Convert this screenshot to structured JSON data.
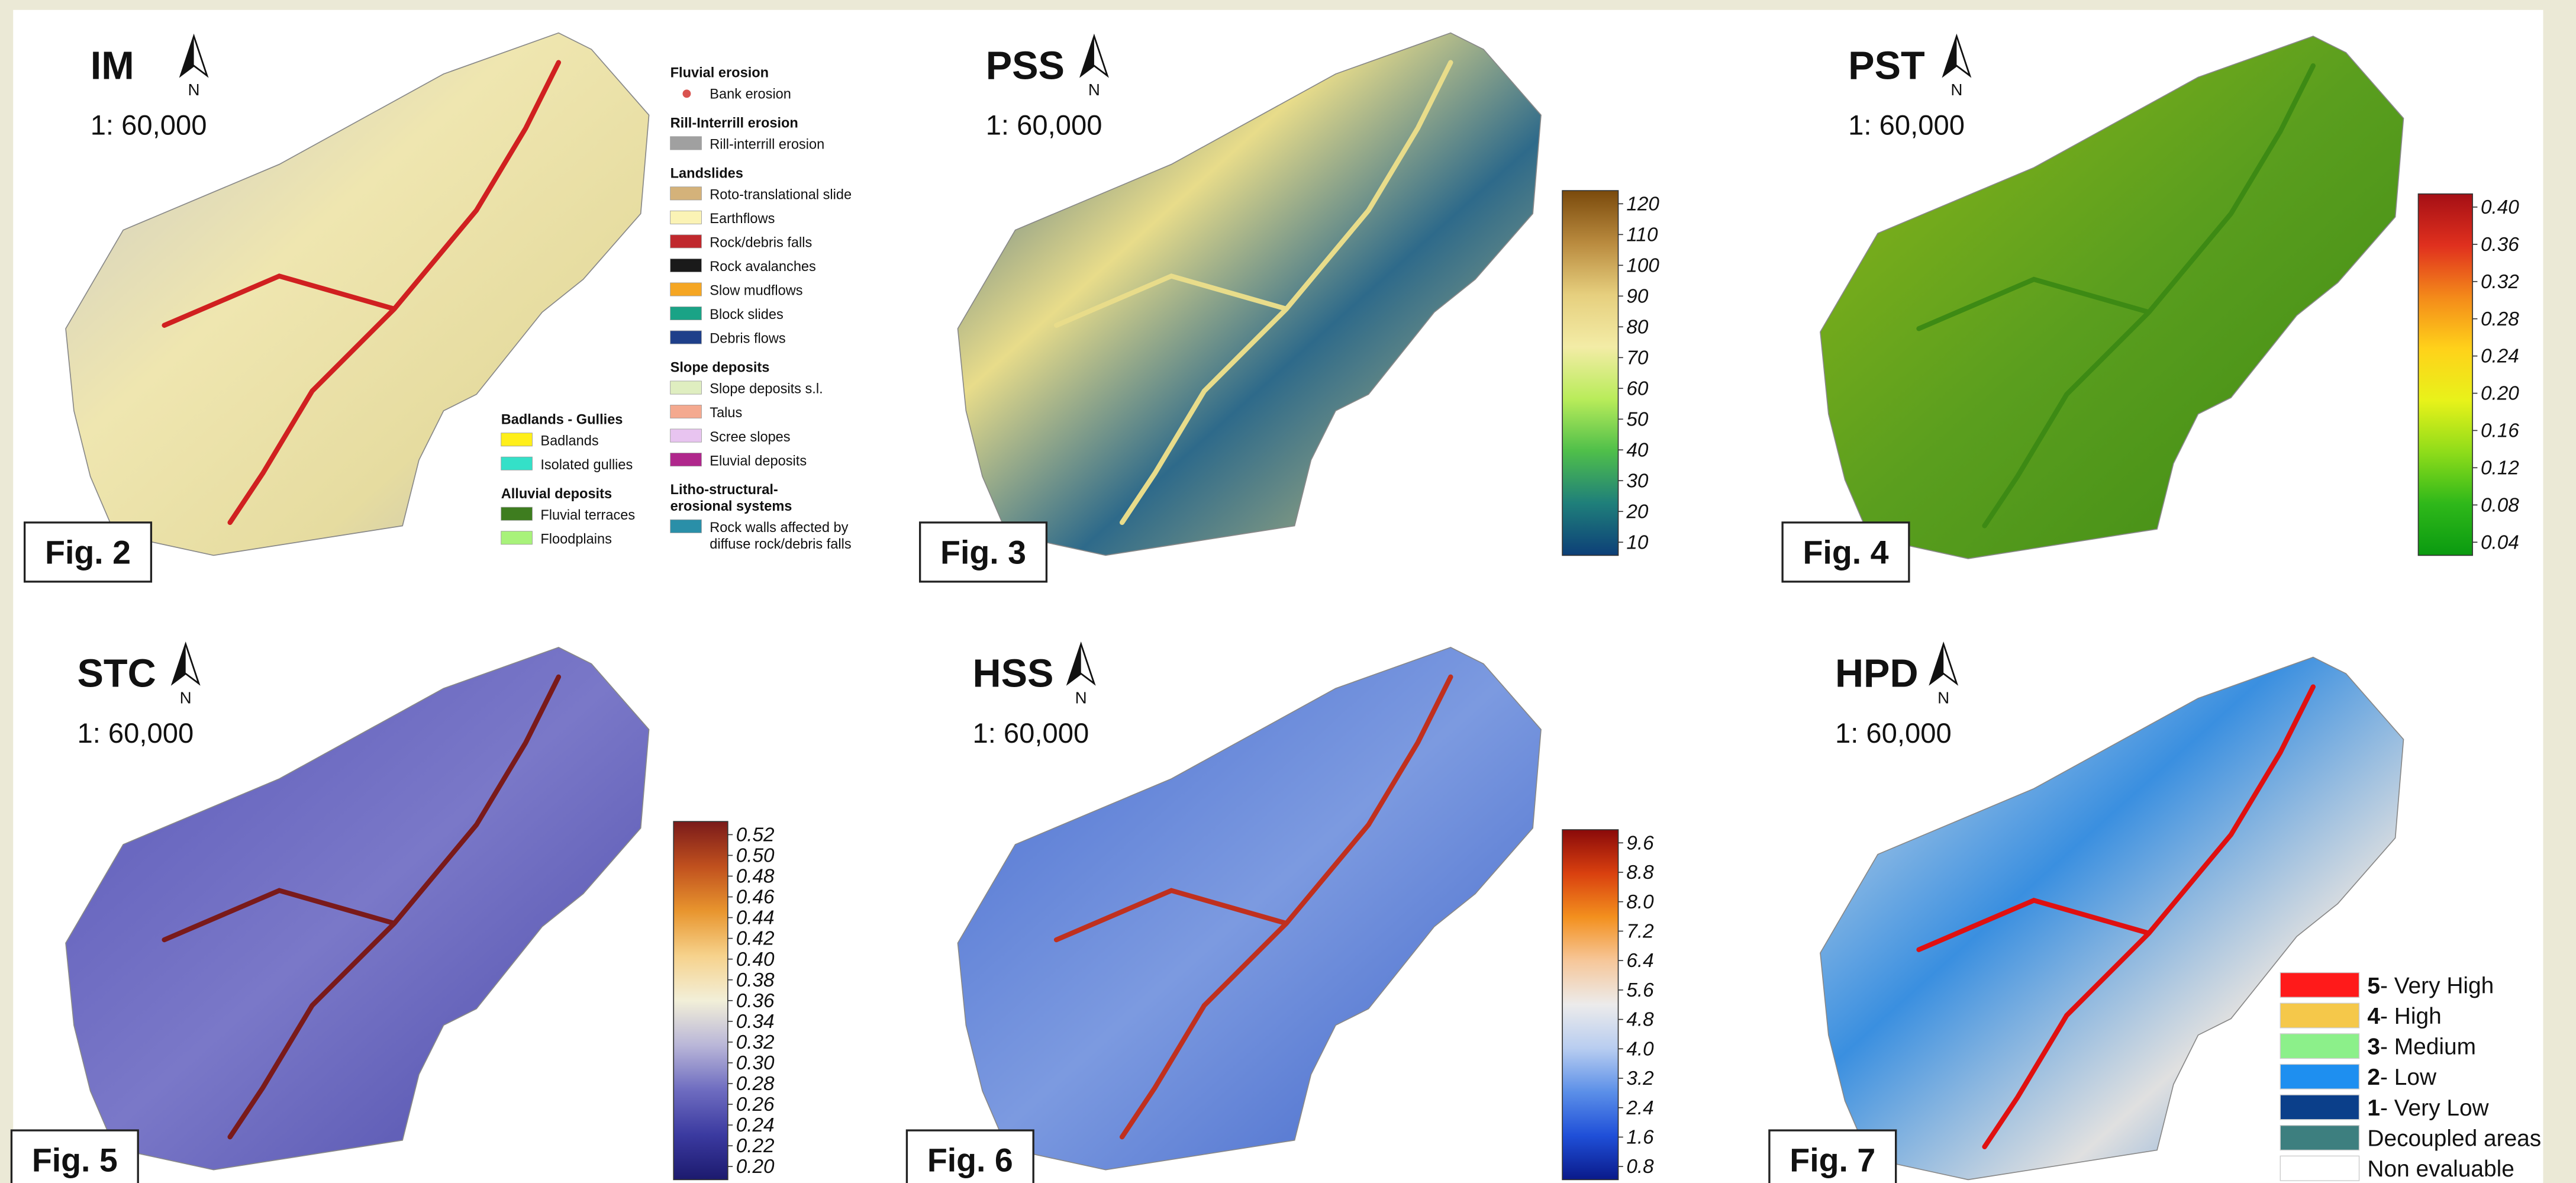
{
  "panels": [
    {
      "title": "IM",
      "north": "N",
      "scale": "1: 60,000",
      "figure": "Fig. 2",
      "legend": [
        {
          "heading": [
            "Fluvial erosion"
          ],
          "items": [
            {
              "label": [
                "Bank erosion"
              ],
              "color": "#d9534f"
            }
          ]
        },
        {
          "heading": [
            "Rill-Interrill erosion"
          ],
          "items": [
            {
              "label": [
                "Rill-interrill erosion"
              ],
              "color": "#a0a0a0"
            }
          ]
        },
        {
          "heading": [
            "Landslides"
          ],
          "items": [
            {
              "label": [
                "Roto-translational slide"
              ],
              "color": "#d4b27a"
            },
            {
              "label": [
                "Earthflows"
              ],
              "color": "#fbf3b5"
            },
            {
              "label": [
                "Rock/debris falls"
              ],
              "color": "#c0282d"
            },
            {
              "label": [
                "Rock avalanches"
              ],
              "color": "#1a1a1a"
            },
            {
              "label": [
                "Slow mudflows"
              ],
              "color": "#f5a623"
            },
            {
              "label": [
                "Block slides"
              ],
              "color": "#1aa386"
            },
            {
              "label": [
                "Debris flows"
              ],
              "color": "#1e3f8a"
            }
          ]
        },
        {
          "heading": [
            "Slope deposits"
          ],
          "items": [
            {
              "label": [
                "Slope deposits s.l."
              ],
              "color": "#dfeec0"
            },
            {
              "label": [
                "Talus"
              ],
              "color": "#f4a98f"
            },
            {
              "label": [
                "Scree slopes"
              ],
              "color": "#e8c4f0"
            },
            {
              "label": [
                "Eluvial deposits"
              ],
              "color": "#b0278c"
            }
          ]
        },
        {
          "heading": [
            "Litho-structural-",
            "erosional systems"
          ],
          "items": [
            {
              "label": [
                "Rock walls affected by",
                "diffuse rock/debris falls"
              ],
              "color": "#2a8fa8"
            }
          ]
        },
        {
          "heading": [
            "Badlands - Gullies"
          ],
          "items": [
            {
              "label": [
                "Badlands"
              ],
              "color": "#ffef1a"
            },
            {
              "label": [
                "Isolated gullies"
              ],
              "color": "#34e0c8"
            }
          ]
        },
        {
          "heading": [
            "Alluvial deposits"
          ],
          "items": [
            {
              "label": [
                "Fluvial terraces"
              ],
              "color": "#3e7d1f"
            },
            {
              "label": [
                "Floodplains"
              ],
              "color": "#a8f27a"
            }
          ]
        }
      ]
    },
    {
      "title": "PSS",
      "north": "N",
      "scale": "1: 60,000",
      "figure": "Fig. 3",
      "colorbar": {
        "ticks": [
          "120",
          "110",
          "100",
          "90",
          "80",
          "70",
          "60",
          "50",
          "40",
          "30",
          "20",
          "10"
        ],
        "colors": [
          "#7a4a0c",
          "#b98a3e",
          "#e6cf7e",
          "#f3eca6",
          "#b9ec5a",
          "#4fbf4a",
          "#1f7f7a",
          "#0d3f78"
        ]
      }
    },
    {
      "title": "PST",
      "north": "N",
      "scale": "1: 60,000",
      "figure": "Fig. 4",
      "colorbar": {
        "ticks": [
          "0.40",
          "0.36",
          "0.32",
          "0.28",
          "0.24",
          "0.20",
          "0.16",
          "0.12",
          "0.08",
          "0.04"
        ],
        "colors": [
          "#a50f15",
          "#e0301e",
          "#f48a1a",
          "#ffd21a",
          "#e8f21a",
          "#8fdc1a",
          "#2fb81a",
          "#0a9a10"
        ]
      }
    },
    {
      "title": "STC",
      "north": "N",
      "scale": "1: 60,000",
      "figure": "Fig. 5",
      "colorbar": {
        "ticks": [
          "0.52",
          "0.50",
          "0.48",
          "0.46",
          "0.44",
          "0.42",
          "0.40",
          "0.38",
          "0.36",
          "0.34",
          "0.32",
          "0.30",
          "0.28",
          "0.26",
          "0.24",
          "0.22",
          "0.20"
        ],
        "colors": [
          "#7a1a1a",
          "#c0501e",
          "#e8952e",
          "#f6d28c",
          "#f2efd8",
          "#b9b6d8",
          "#6e6cc0",
          "#3b3aa0",
          "#1c1a6e"
        ]
      }
    },
    {
      "title": "HSS",
      "north": "N",
      "scale": "1: 60,000",
      "figure": "Fig. 6",
      "colorbar": {
        "ticks": [
          "9.6",
          "8.8",
          "8.0",
          "7.2",
          "6.4",
          "5.6",
          "4.8",
          "4.0",
          "3.2",
          "2.4",
          "1.6",
          "0.8"
        ],
        "colors": [
          "#8a0a0a",
          "#d9400f",
          "#f3901e",
          "#f6c79a",
          "#ecebeb",
          "#b8cdf0",
          "#5b8fe8",
          "#1f4fd8",
          "#0a1a8a"
        ]
      }
    },
    {
      "title": "HPD",
      "north": "N",
      "scale": "1: 60,000",
      "figure": "Fig. 7",
      "classes": [
        {
          "class": "5",
          "label": "- Very High",
          "color": "#ff1a1a"
        },
        {
          "class": "4",
          "label": "- High",
          "color": "#f5c84a"
        },
        {
          "class": "3",
          "label": "- Medium",
          "color": "#8cf08a"
        },
        {
          "class": "2",
          "label": "- Low",
          "color": "#1e8ff0"
        },
        {
          "class": "1",
          "label": "- Very Low",
          "color": "#0b3f8a"
        },
        {
          "label": "Decoupled areas",
          "color": "#3d7f7f"
        },
        {
          "label": "Non evaluable",
          "color": "#ffffff"
        }
      ]
    }
  ]
}
